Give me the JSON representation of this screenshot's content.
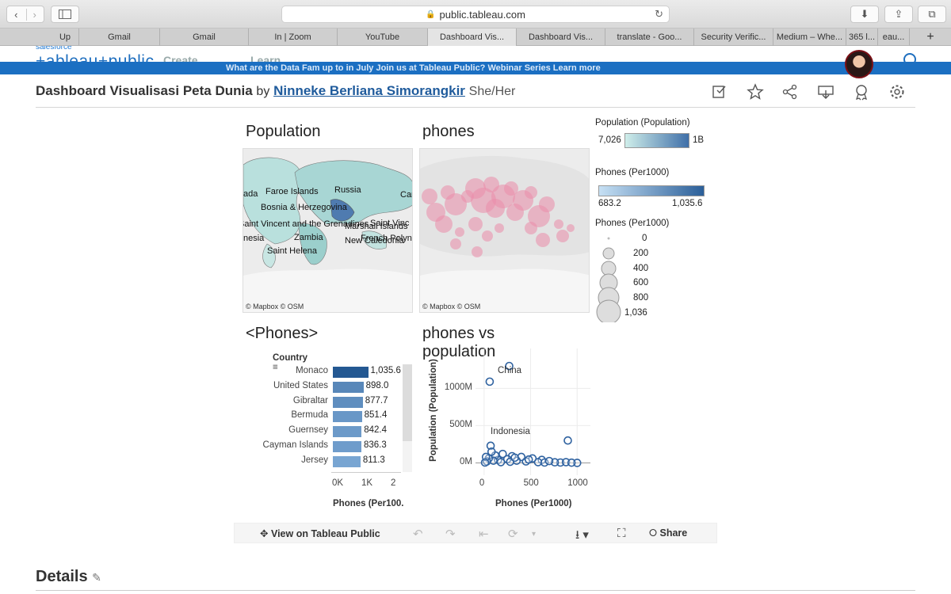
{
  "browser": {
    "url": "public.tableau.com",
    "tabs": [
      {
        "label": "Up",
        "active": false
      },
      {
        "label": "Gmail",
        "active": false
      },
      {
        "label": "Gmail",
        "active": false
      },
      {
        "label": "In | Zoom",
        "active": false
      },
      {
        "label": "YouTube",
        "active": false
      },
      {
        "label": "Dashboard Vis...",
        "active": true
      },
      {
        "label": "Dashboard Vis...",
        "active": false
      },
      {
        "label": "translate - Goo...",
        "active": false
      },
      {
        "label": "Security Verific...",
        "active": false
      },
      {
        "label": "Medium – Whe...",
        "active": false
      },
      {
        "label": "365 l...",
        "active": false
      },
      {
        "label": "eau...",
        "active": false
      }
    ]
  },
  "site": {
    "brand": "salesforce",
    "logo": "+ableau+public",
    "nav": [
      "Create",
      "Learn"
    ],
    "banner": "What are the Data Fam up to in July Join us at Tableau Public? Webinar Series Learn more"
  },
  "page": {
    "title": "Dashboard Visualisasi Peta Dunia",
    "by": "by",
    "author": "Ninneke Berliana Simorangkir",
    "pronouns": "She/Her"
  },
  "dashboard": {
    "population_title": "Population",
    "phones_title": "phones",
    "bar_title": "<Phones>",
    "scatter_title": "phones vs population",
    "map_attribution": "© Mapbox © OSM",
    "map_labels": [
      "Faroe Islands",
      "Russia",
      "Bosnia & Herzegovina",
      "Saint Vincent and the Grenadines",
      "Marshall Islands",
      "Zambia",
      "French Polynesia",
      "New Caledonia",
      "Saint Helena",
      "Saint Vinc",
      "ada",
      "nesia",
      "Car"
    ],
    "legend_pop": {
      "title": "Population (Population)",
      "min": "7,026",
      "max": "1B"
    },
    "legend_phones_color": {
      "title": "Phones (Per1000)",
      "min": "683.2",
      "max": "1,035.6"
    },
    "legend_phones_size": {
      "title": "Phones (Per1000)",
      "entries": [
        "0",
        "200",
        "400",
        "600",
        "800",
        "1,036"
      ]
    },
    "bar_header": "Country",
    "bar_axis_title": "Phones (Per100.",
    "scatter_x_title": "Phones (Per1000)",
    "scatter_y_title": "Population (Population)",
    "scatter_annotations": [
      "China",
      "Indonesia"
    ]
  },
  "chart_data": [
    {
      "type": "bar",
      "categories": [
        "Monaco",
        "United States",
        "Gibraltar",
        "Bermuda",
        "Guernsey",
        "Cayman Islands",
        "Jersey"
      ],
      "values": [
        1035.6,
        898.0,
        877.7,
        851.4,
        842.4,
        836.3,
        811.3
      ],
      "value_labels": [
        "1,035.6",
        "898.0",
        "877.7",
        "851.4",
        "842.4",
        "836.3",
        "811.3"
      ],
      "xlabel": "Phones (Per100.",
      "xticks": [
        "0K",
        "1K",
        "2"
      ],
      "xlim": [
        0,
        2000
      ]
    },
    {
      "type": "scatter",
      "xlabel": "Phones (Per1000)",
      "ylabel": "Population (Population)",
      "xticks": [
        "0",
        "500",
        "1000"
      ],
      "yticks": [
        "0M",
        "500M",
        "1000M"
      ],
      "xlim": [
        -50,
        1100
      ],
      "ylim": [
        -80,
        1450
      ],
      "points": [
        {
          "x": 270,
          "y": 1300,
          "label": "China"
        },
        {
          "x": 60,
          "y": 1090
        },
        {
          "x": 70,
          "y": 230,
          "label": "Indonesia"
        },
        {
          "x": 900,
          "y": 300
        },
        {
          "x": 1000,
          "y": 0
        },
        {
          "x": 820,
          "y": 5
        },
        {
          "x": 760,
          "y": 8
        },
        {
          "x": 620,
          "y": 40
        },
        {
          "x": 580,
          "y": 10
        },
        {
          "x": 520,
          "y": 60
        },
        {
          "x": 450,
          "y": 20
        },
        {
          "x": 400,
          "y": 80
        },
        {
          "x": 350,
          "y": 30
        },
        {
          "x": 300,
          "y": 90
        },
        {
          "x": 250,
          "y": 50
        },
        {
          "x": 200,
          "y": 120
        },
        {
          "x": 150,
          "y": 40
        },
        {
          "x": 120,
          "y": 100
        },
        {
          "x": 100,
          "y": 30
        },
        {
          "x": 80,
          "y": 150
        },
        {
          "x": 50,
          "y": 60
        },
        {
          "x": 30,
          "y": 20
        },
        {
          "x": 20,
          "y": 80
        },
        {
          "x": 10,
          "y": 5
        },
        {
          "x": 180,
          "y": 10
        },
        {
          "x": 280,
          "y": 15
        },
        {
          "x": 330,
          "y": 70
        },
        {
          "x": 480,
          "y": 45
        },
        {
          "x": 650,
          "y": 5
        },
        {
          "x": 700,
          "y": 25
        },
        {
          "x": 880,
          "y": 10
        },
        {
          "x": 940,
          "y": 3
        }
      ]
    }
  ],
  "tableau_toolbar": {
    "view": "View on Tableau Public",
    "share": "Share"
  },
  "details": {
    "title": "Details"
  }
}
